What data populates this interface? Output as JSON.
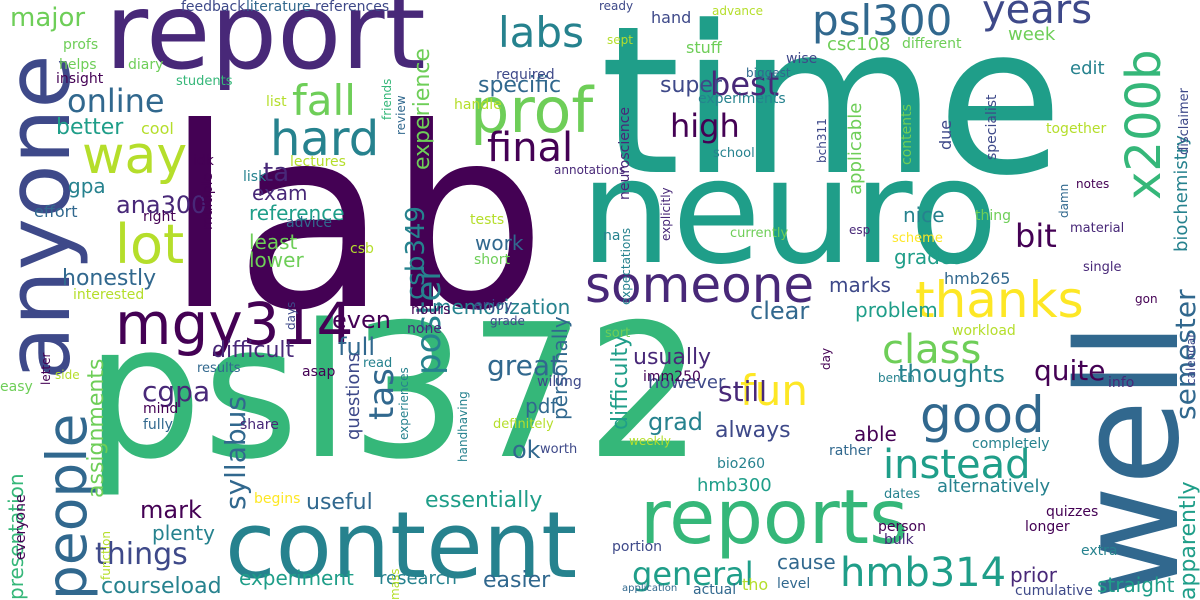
{
  "colors": {
    "background": "#ffffff",
    "palette": [
      "#440154",
      "#482878",
      "#3e4989",
      "#31688e",
      "#26828e",
      "#1f9e89",
      "#35b779",
      "#6ece58",
      "#b5de2b",
      "#fde725"
    ]
  },
  "words": [
    {
      "text": "time",
      "color": "#1f9e89"
    },
    {
      "text": "lab",
      "color": "#440154"
    },
    {
      "text": "psl372",
      "color": "#35b779"
    },
    {
      "text": "neuro",
      "color": "#1f9e89"
    },
    {
      "text": "report",
      "color": "#482878"
    },
    {
      "text": "content",
      "color": "#26828e"
    },
    {
      "text": "well",
      "color": "#31688e"
    },
    {
      "text": "anyone",
      "color": "#3e4989"
    },
    {
      "text": "reports",
      "color": "#35b779"
    },
    {
      "text": "people",
      "color": "#31688e"
    },
    {
      "text": "mgy314",
      "color": "#440154"
    },
    {
      "text": "someone",
      "color": "#482878"
    },
    {
      "text": "prof",
      "color": "#6ece58"
    },
    {
      "text": "way",
      "color": "#b5de2b"
    },
    {
      "text": "psl300",
      "color": "#31688e"
    },
    {
      "text": "x200b",
      "color": "#35b779"
    },
    {
      "text": "good",
      "color": "#31688e"
    },
    {
      "text": "hard",
      "color": "#26828e"
    },
    {
      "text": "lot",
      "color": "#b5de2b"
    },
    {
      "text": "thanks",
      "color": "#fde725"
    },
    {
      "text": "hmb314",
      "color": "#1f9e89"
    },
    {
      "text": "labs",
      "color": "#26828e"
    },
    {
      "text": "final",
      "color": "#440154"
    },
    {
      "text": "fall",
      "color": "#6ece58"
    },
    {
      "text": "online",
      "color": "#31688e"
    },
    {
      "text": "instead",
      "color": "#1f9e89"
    },
    {
      "text": "class",
      "color": "#6ece58"
    },
    {
      "text": "fun",
      "color": "#fde725"
    },
    {
      "text": "years",
      "color": "#3e4989"
    },
    {
      "text": "poster",
      "color": "#26828e"
    },
    {
      "text": "general",
      "color": "#1f9e89"
    },
    {
      "text": "high",
      "color": "#440154"
    },
    {
      "text": "things",
      "color": "#3e4989"
    },
    {
      "text": "tas",
      "color": "#31688e"
    },
    {
      "text": "semester",
      "color": "#31688e"
    },
    {
      "text": "thoughts",
      "color": "#26828e"
    },
    {
      "text": "major",
      "color": "#6ece58"
    },
    {
      "text": "best",
      "color": "#482878"
    },
    {
      "text": "bit",
      "color": "#440154"
    },
    {
      "text": "csb349",
      "color": "#26828e"
    },
    {
      "text": "syllabus",
      "color": "#31688e"
    },
    {
      "text": "ta",
      "color": "#482878"
    },
    {
      "text": "experience",
      "color": "#6ece58"
    },
    {
      "text": "week",
      "color": "#6ece58"
    },
    {
      "text": "specific",
      "color": "#31688e"
    },
    {
      "text": "edit",
      "color": "#26828e"
    },
    {
      "text": "super",
      "color": "#3e4989"
    },
    {
      "text": "memorization",
      "color": "#26828e"
    },
    {
      "text": "personally",
      "color": "#31688e"
    },
    {
      "text": "difficulty",
      "color": "#1f9e89"
    },
    {
      "text": "grad",
      "color": "#26828e"
    },
    {
      "text": "great",
      "color": "#31688e"
    },
    {
      "text": "usually",
      "color": "#482878"
    },
    {
      "text": "quite",
      "color": "#440154"
    },
    {
      "text": "still",
      "color": "#482878"
    },
    {
      "text": "always",
      "color": "#3e4989"
    },
    {
      "text": "clear",
      "color": "#31688e"
    },
    {
      "text": "marks",
      "color": "#3e4989"
    },
    {
      "text": "problem",
      "color": "#1f9e89"
    },
    {
      "text": "full",
      "color": "#31688e"
    },
    {
      "text": "even",
      "color": "#440154"
    },
    {
      "text": "honestly",
      "color": "#31688e"
    },
    {
      "text": "difficult",
      "color": "#482878"
    },
    {
      "text": "ana300",
      "color": "#482878"
    },
    {
      "text": "mark",
      "color": "#440154"
    },
    {
      "text": "plenty",
      "color": "#26828e"
    },
    {
      "text": "presentation",
      "color": "#35b779"
    },
    {
      "text": "assignments",
      "color": "#6ece58"
    },
    {
      "text": "cgpa",
      "color": "#482878"
    },
    {
      "text": "useful",
      "color": "#31688e"
    },
    {
      "text": "essentially",
      "color": "#1f9e89"
    },
    {
      "text": "courseload",
      "color": "#26828e"
    },
    {
      "text": "experiment",
      "color": "#1f9e89"
    },
    {
      "text": "research",
      "color": "#26828e"
    },
    {
      "text": "easier",
      "color": "#31688e"
    },
    {
      "text": "hmb300",
      "color": "#1f9e89"
    },
    {
      "text": "cause",
      "color": "#31688e"
    },
    {
      "text": "prior",
      "color": "#482878"
    },
    {
      "text": "straight",
      "color": "#1f9e89"
    },
    {
      "text": "apparently",
      "color": "#1f9e89"
    },
    {
      "text": "alternatively",
      "color": "#26828e"
    },
    {
      "text": "better",
      "color": "#1f9e89"
    },
    {
      "text": "csc108",
      "color": "#6ece58"
    },
    {
      "text": "gpa",
      "color": "#26828e"
    },
    {
      "text": "exam",
      "color": "#482878"
    },
    {
      "text": "reference",
      "color": "#1f9e89"
    },
    {
      "text": "least",
      "color": "#6ece58"
    },
    {
      "text": "lower",
      "color": "#6ece58"
    },
    {
      "text": "work",
      "color": "#31688e"
    },
    {
      "text": "nice",
      "color": "#26828e"
    },
    {
      "text": "grades",
      "color": "#1f9e89"
    },
    {
      "text": "ok",
      "color": "#31688e"
    },
    {
      "text": "pdf",
      "color": "#31688e"
    },
    {
      "text": "however",
      "color": "#3e4989"
    },
    {
      "text": "applicable",
      "color": "#6ece58"
    },
    {
      "text": "biochemistry",
      "color": "#26828e"
    },
    {
      "text": "hmb265",
      "color": "#31688e"
    },
    {
      "text": "able",
      "color": "#440154"
    },
    {
      "text": "effort",
      "color": "#31688e"
    },
    {
      "text": "questions",
      "color": "#3e4989"
    },
    {
      "text": "due",
      "color": "#3e4989"
    },
    {
      "text": "feedback",
      "color": "#3e4989"
    },
    {
      "text": "literature",
      "color": "#31688e"
    },
    {
      "text": "references",
      "color": "#3e4989"
    },
    {
      "text": "ready",
      "color": "#3e4989"
    },
    {
      "text": "hand",
      "color": "#3e4989"
    },
    {
      "text": "advance",
      "color": "#b5de2b"
    },
    {
      "text": "biggest",
      "color": "#31688e"
    },
    {
      "text": "wise",
      "color": "#3e4989"
    },
    {
      "text": "sept",
      "color": "#b5de2b"
    },
    {
      "text": "stuff",
      "color": "#6ece58"
    },
    {
      "text": "profs",
      "color": "#6ece58"
    },
    {
      "text": "helps",
      "color": "#6ece58"
    },
    {
      "text": "diary",
      "color": "#6ece58"
    },
    {
      "text": "insight",
      "color": "#440154"
    },
    {
      "text": "students",
      "color": "#35b779"
    },
    {
      "text": "required",
      "color": "#3e4989"
    },
    {
      "text": "review",
      "color": "#31688e"
    },
    {
      "text": "friends",
      "color": "#35b779"
    },
    {
      "text": "handle",
      "color": "#b5de2b"
    },
    {
      "text": "list",
      "color": "#b5de2b"
    },
    {
      "text": "experiments",
      "color": "#26828e"
    },
    {
      "text": "different",
      "color": "#6ece58"
    },
    {
      "text": "disclaimer",
      "color": "#3e4989"
    },
    {
      "text": "specialist",
      "color": "#3e4989"
    },
    {
      "text": "bch311",
      "color": "#3e4989"
    },
    {
      "text": "together",
      "color": "#b5de2b"
    },
    {
      "text": "cool",
      "color": "#b5de2b"
    },
    {
      "text": "neuroscience",
      "color": "#482878"
    },
    {
      "text": "school",
      "color": "#26828e"
    },
    {
      "text": "contents",
      "color": "#6ece58"
    },
    {
      "text": "lectures",
      "color": "#b5de2b"
    },
    {
      "text": "idk",
      "color": "#440154"
    },
    {
      "text": "multiple",
      "color": "#440154"
    },
    {
      "text": "right",
      "color": "#440154"
    },
    {
      "text": "lisk",
      "color": "#26828e"
    },
    {
      "text": "annotations",
      "color": "#482878"
    },
    {
      "text": "explicitly",
      "color": "#482878"
    },
    {
      "text": "notes",
      "color": "#440154"
    },
    {
      "text": "thing",
      "color": "#6ece58"
    },
    {
      "text": "damn",
      "color": "#31688e"
    },
    {
      "text": "material",
      "color": "#482878"
    },
    {
      "text": "esp",
      "color": "#482878"
    },
    {
      "text": "scheme",
      "color": "#fde725"
    },
    {
      "text": "currently",
      "color": "#6ece58"
    },
    {
      "text": "advice",
      "color": "#31688e"
    },
    {
      "text": "tests",
      "color": "#b5de2b"
    },
    {
      "text": "csb",
      "color": "#b5de2b"
    },
    {
      "text": "na",
      "color": "#26828e"
    },
    {
      "text": "expectations",
      "color": "#26828e"
    },
    {
      "text": "short",
      "color": "#6ece58"
    },
    {
      "text": "single",
      "color": "#482878"
    },
    {
      "text": "gon",
      "color": "#440154"
    },
    {
      "text": "interested",
      "color": "#b5de2b"
    },
    {
      "text": "enjoy",
      "color": "#3e4989"
    },
    {
      "text": "letter",
      "color": "#440154"
    },
    {
      "text": "hours",
      "color": "#440154"
    },
    {
      "text": "none",
      "color": "#482878"
    },
    {
      "text": "days",
      "color": "#3e4989"
    },
    {
      "text": "grade",
      "color": "#3e4989"
    },
    {
      "text": "sort",
      "color": "#6ece58"
    },
    {
      "text": "workload",
      "color": "#b5de2b"
    },
    {
      "text": "easy",
      "color": "#6ece58"
    },
    {
      "text": "side",
      "color": "#b5de2b"
    },
    {
      "text": "results",
      "color": "#31688e"
    },
    {
      "text": "read",
      "color": "#26828e"
    },
    {
      "text": "experiences",
      "color": "#26828e"
    },
    {
      "text": "handhaving",
      "color": "#26828e"
    },
    {
      "text": "willing",
      "color": "#3e4989"
    },
    {
      "text": "day",
      "color": "#440154"
    },
    {
      "text": "info",
      "color": "#482878"
    },
    {
      "text": "calendar",
      "color": "#3e4989"
    },
    {
      "text": "bench",
      "color": "#26828e"
    },
    {
      "text": "imm250",
      "color": "#440154"
    },
    {
      "text": "asap",
      "color": "#440154"
    },
    {
      "text": "mind",
      "color": "#440154"
    },
    {
      "text": "fully",
      "color": "#31688e"
    },
    {
      "text": "share",
      "color": "#482878"
    },
    {
      "text": "definitely",
      "color": "#b5de2b"
    },
    {
      "text": "worth",
      "color": "#3e4989"
    },
    {
      "text": "weekly",
      "color": "#b5de2b"
    },
    {
      "text": "bio260",
      "color": "#26828e"
    },
    {
      "text": "rather",
      "color": "#31688e"
    },
    {
      "text": "completely",
      "color": "#26828e"
    },
    {
      "text": "dates",
      "color": "#26828e"
    },
    {
      "text": "quizzes",
      "color": "#440154"
    },
    {
      "text": "longer",
      "color": "#440154"
    },
    {
      "text": "person",
      "color": "#440154"
    },
    {
      "text": "bulk",
      "color": "#482878"
    },
    {
      "text": "extra",
      "color": "#26828e"
    },
    {
      "text": "cumulative",
      "color": "#3e4989"
    },
    {
      "text": "actual",
      "color": "#31688e"
    },
    {
      "text": "level",
      "color": "#31688e"
    },
    {
      "text": "tho",
      "color": "#b5de2b"
    },
    {
      "text": "application",
      "color": "#31688e"
    },
    {
      "text": "portion",
      "color": "#3e4989"
    },
    {
      "text": "mass",
      "color": "#b5de2b"
    },
    {
      "text": "function",
      "color": "#b5de2b"
    },
    {
      "text": "begins",
      "color": "#fde725"
    },
    {
      "text": "everyone",
      "color": "#440154"
    }
  ]
}
